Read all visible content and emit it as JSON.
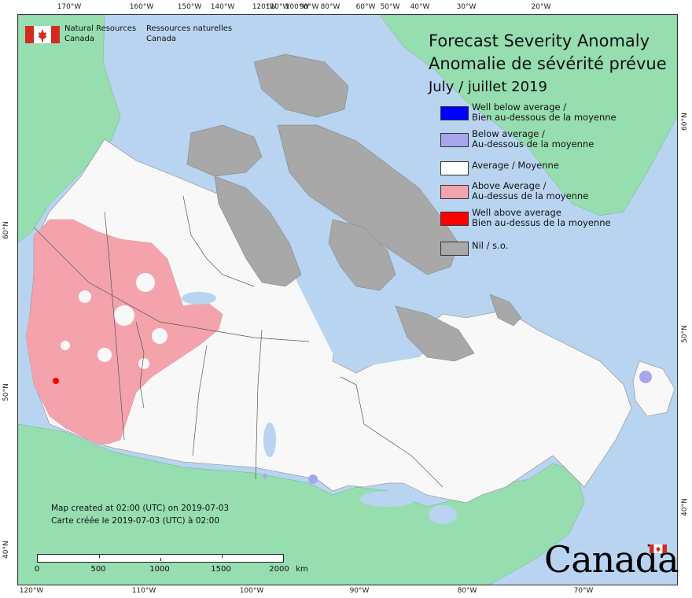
{
  "header": {
    "title_en": "Forecast Severity Anomaly",
    "title_fr": "Anomalie de sévérité prévue",
    "date": "July / juillet 2019"
  },
  "agency": {
    "name_en_1": "Natural Resources",
    "name_en_2": "Canada",
    "name_fr_1": "Ressources naturelles",
    "name_fr_2": "Canada"
  },
  "legend": {
    "items": [
      {
        "label": "Well below average /\nBien au-dessous de la moyenne",
        "color": "#0000ff"
      },
      {
        "label": "Below average /\nAu-dessous de la moyenne",
        "color": "#a6a6ee"
      },
      {
        "label": "Average / Moyenne",
        "color": "#ffffff"
      },
      {
        "label": "Above Average /\nAu-dessus de la moyenne",
        "color": "#f4a3ac"
      },
      {
        "label": "Well above average\nBien au-dessus de la moyenne",
        "color": "#ff0000"
      },
      {
        "label": "Nil / s.o.",
        "color": "#a8a8a8"
      }
    ]
  },
  "credit": {
    "line_en": "Map created at 02:00 (UTC) on 2019-07-03",
    "line_fr": "Carte créée le 2019-07-03 (UTC) à 02:00"
  },
  "scale": {
    "labels": [
      "0",
      "500",
      "1000",
      "1500",
      "2000"
    ],
    "unit": "km"
  },
  "graticule": {
    "top": [
      "170°W",
      "160°W",
      "150°W",
      "140°W",
      "120°W",
      "110°W",
      "100°W",
      "90°W",
      "80°W",
      "60°W",
      "50°W",
      "40°W",
      "30°W",
      "20°W"
    ],
    "bottom": [
      "120°W",
      "110°W",
      "100°W",
      "90°W",
      "80°W",
      "70°W"
    ],
    "left": [
      "60°N",
      "50°N",
      "40°N"
    ],
    "right": [
      "60°N",
      "50°N",
      "40°N"
    ]
  },
  "wordmark": "Canada",
  "colors": {
    "water": "#b8d4f0",
    "foreign_land": "#96ddb0",
    "nil": "#a8a8a8",
    "average": "#f8f8f8",
    "above": "#f4a3ac",
    "well_above": "#ff0000",
    "below": "#a6a6ee"
  }
}
